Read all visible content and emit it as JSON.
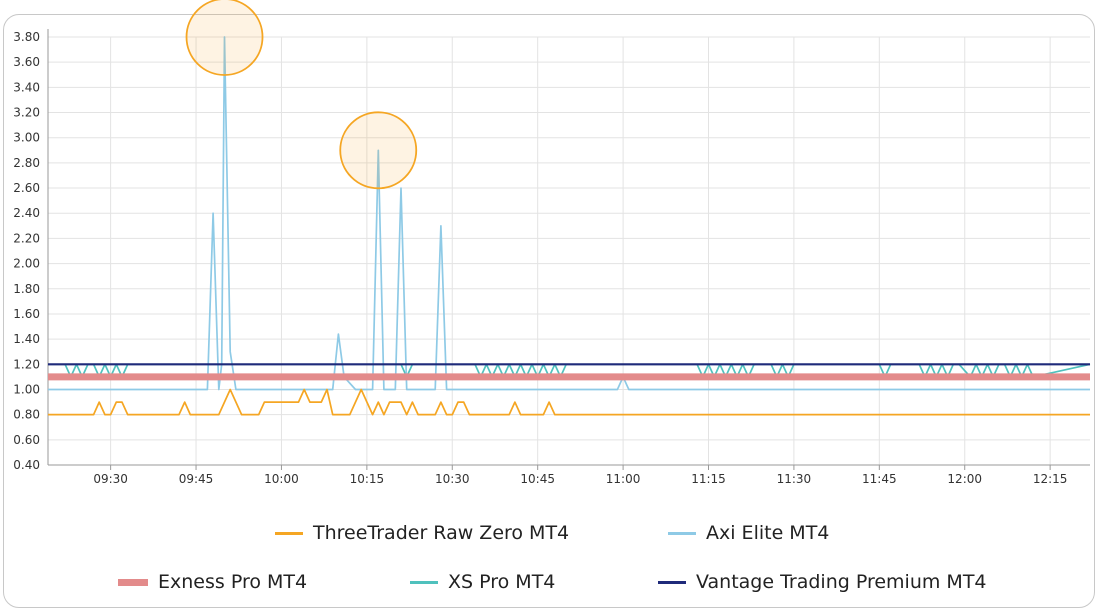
{
  "chart_data": {
    "type": "line",
    "title": "",
    "xlabel": "",
    "ylabel": "",
    "ylim": [
      0.4,
      3.8
    ],
    "yticks": [
      "0.40",
      "0.60",
      "0.80",
      "1.00",
      "1.20",
      "1.40",
      "1.60",
      "1.80",
      "2.00",
      "2.20",
      "2.40",
      "2.60",
      "2.80",
      "3.00",
      "3.20",
      "3.40",
      "3.60",
      "3.80"
    ],
    "xlim": [
      "09:19",
      "12:22"
    ],
    "xticks": [
      "09:30",
      "09:45",
      "10:00",
      "10:15",
      "10:30",
      "10:45",
      "11:00",
      "11:15",
      "11:30",
      "11:45",
      "12:00",
      "12:15"
    ],
    "grid": true,
    "legend_position": "bottom",
    "series": [
      {
        "name": "ThreeTrader Raw Zero MT4",
        "color": "#f5a623",
        "x": [
          "09:19",
          "09:27",
          "09:28",
          "09:29",
          "09:30",
          "09:31",
          "09:32",
          "09:33",
          "09:42",
          "09:43",
          "09:44",
          "09:49",
          "09:51",
          "09:53",
          "09:56",
          "09:57",
          "09:58",
          "10:03",
          "10:04",
          "10:05",
          "10:07",
          "10:08",
          "10:09",
          "10:12",
          "10:14",
          "10:16",
          "10:17",
          "10:18",
          "10:19",
          "10:21",
          "10:22",
          "10:23",
          "10:24",
          "10:26",
          "10:27",
          "10:28",
          "10:29",
          "10:30",
          "10:31",
          "10:32",
          "10:33",
          "10:34",
          "10:40",
          "10:41",
          "10:42",
          "10:46",
          "10:47",
          "10:48",
          "12:22"
        ],
        "y": [
          0.8,
          0.8,
          0.9,
          0.8,
          0.8,
          0.9,
          0.9,
          0.8,
          0.8,
          0.9,
          0.8,
          0.8,
          1.0,
          0.8,
          0.8,
          0.9,
          0.9,
          0.9,
          1.0,
          0.9,
          0.9,
          1.0,
          0.8,
          0.8,
          1.0,
          0.8,
          0.9,
          0.8,
          0.9,
          0.9,
          0.8,
          0.9,
          0.8,
          0.8,
          0.8,
          0.9,
          0.8,
          0.8,
          0.9,
          0.9,
          0.8,
          0.8,
          0.8,
          0.9,
          0.8,
          0.8,
          0.9,
          0.8,
          0.8
        ]
      },
      {
        "name": "Axi Elite MT4",
        "color": "#8ecae6",
        "x": [
          "09:19",
          "09:47",
          "09:48",
          "09:49",
          "09:49.5",
          "09:50",
          "09:51",
          "09:52",
          "10:09",
          "10:10",
          "10:11",
          "10:13",
          "10:16",
          "10:17",
          "10:18",
          "10:19",
          "10:20",
          "10:21",
          "10:22",
          "10:23",
          "10:27",
          "10:28",
          "10:29",
          "10:59",
          "11:00",
          "11:01",
          "12:22"
        ],
        "y": [
          1.0,
          1.0,
          2.4,
          1.0,
          1.2,
          3.8,
          1.3,
          1.0,
          1.0,
          1.44,
          1.1,
          1.0,
          1.0,
          2.9,
          1.0,
          1.0,
          1.0,
          2.6,
          1.0,
          1.0,
          1.0,
          2.3,
          1.0,
          1.0,
          1.1,
          1.0,
          1.0
        ]
      },
      {
        "name": "Exness Pro MT4",
        "color": "#e38b8b",
        "x": [
          "09:19",
          "12:22"
        ],
        "y": [
          1.1,
          1.1
        ]
      },
      {
        "name": "XS Pro MT4",
        "color": "#4fc1bd",
        "x": [
          "09:19",
          "09:22",
          "09:23",
          "09:24",
          "09:25",
          "09:26",
          "09:27",
          "09:28",
          "09:29",
          "09:30",
          "09:31",
          "09:32",
          "09:33",
          "10:21",
          "10:22",
          "10:23",
          "10:34",
          "10:35",
          "10:36",
          "10:37",
          "10:38",
          "10:39",
          "10:40",
          "10:41",
          "10:42",
          "10:43",
          "10:44",
          "10:45",
          "10:46",
          "10:47",
          "10:48",
          "10:49",
          "10:50",
          "11:13",
          "11:14",
          "11:15",
          "11:16",
          "11:17",
          "11:18",
          "11:19",
          "11:20",
          "11:21",
          "11:22",
          "11:23",
          "11:26",
          "11:27",
          "11:28",
          "11:29",
          "11:30",
          "11:31",
          "11:45",
          "11:46",
          "11:47",
          "11:52",
          "11:53",
          "11:54",
          "11:55",
          "11:56",
          "11:57",
          "11:58",
          "11:59",
          "12:01",
          "12:02",
          "12:03",
          "12:04",
          "12:05",
          "12:06",
          "12:07",
          "12:08",
          "12:09",
          "12:10",
          "12:11",
          "12:12",
          "12:22"
        ],
        "y": [
          1.2,
          1.2,
          1.1,
          1.2,
          1.1,
          1.2,
          1.2,
          1.1,
          1.2,
          1.1,
          1.2,
          1.1,
          1.2,
          1.2,
          1.1,
          1.2,
          1.2,
          1.1,
          1.2,
          1.1,
          1.2,
          1.1,
          1.2,
          1.1,
          1.2,
          1.1,
          1.2,
          1.1,
          1.2,
          1.1,
          1.2,
          1.1,
          1.2,
          1.2,
          1.1,
          1.2,
          1.1,
          1.2,
          1.1,
          1.2,
          1.1,
          1.2,
          1.1,
          1.2,
          1.2,
          1.1,
          1.2,
          1.1,
          1.2,
          1.2,
          1.2,
          1.1,
          1.2,
          1.2,
          1.1,
          1.2,
          1.1,
          1.2,
          1.1,
          1.2,
          1.2,
          1.1,
          1.2,
          1.1,
          1.2,
          1.1,
          1.2,
          1.2,
          1.1,
          1.2,
          1.1,
          1.2,
          1.1,
          1.2
        ]
      },
      {
        "name": "Vantage Trading Premium MT4",
        "color": "#1f2a7a",
        "x": [
          "09:19",
          "12:22"
        ],
        "y": [
          1.2,
          1.2
        ]
      }
    ],
    "annotations": [
      {
        "type": "circle",
        "x": "09:50",
        "y": 3.8,
        "color": "#f5a623"
      },
      {
        "type": "circle",
        "x": "10:17",
        "y": 2.9,
        "color": "#f5a623"
      }
    ]
  }
}
